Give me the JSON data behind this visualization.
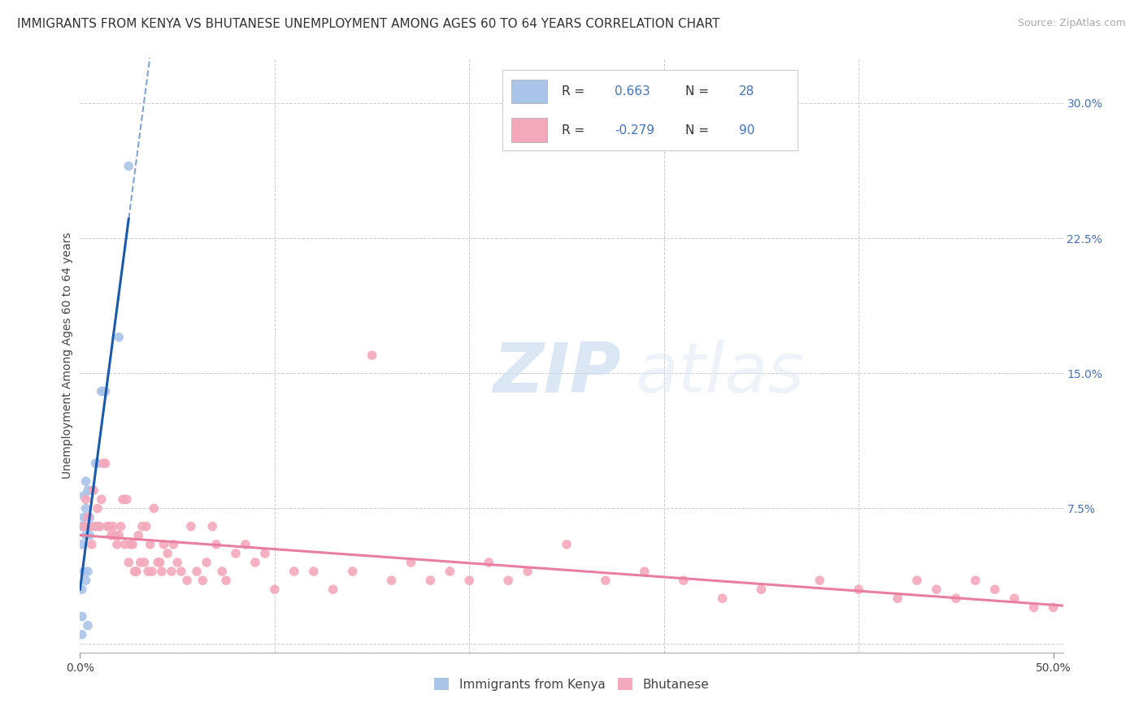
{
  "title": "IMMIGRANTS FROM KENYA VS BHUTANESE UNEMPLOYMENT AMONG AGES 60 TO 64 YEARS CORRELATION CHART",
  "source": "Source: ZipAtlas.com",
  "ylabel": "Unemployment Among Ages 60 to 64 years",
  "xlim": [
    0.0,
    0.505
  ],
  "ylim": [
    -0.005,
    0.325
  ],
  "xtick_positions": [
    0.0,
    0.5
  ],
  "xticklabels": [
    "0.0%",
    "50.0%"
  ],
  "ytick_positions": [
    0.0,
    0.075,
    0.15,
    0.225,
    0.3
  ],
  "yticklabels_right": [
    "",
    "7.5%",
    "15.0%",
    "22.5%",
    "30.0%"
  ],
  "background_color": "#ffffff",
  "grid_color": "#cccccc",
  "kenya_color": "#aac4e8",
  "bhutan_color": "#f4a8bc",
  "kenya_line_color": "#1a5aad",
  "bhutan_line_color": "#e87fa0",
  "kenya_R": 0.663,
  "kenya_N": 28,
  "bhutan_R": -0.279,
  "bhutan_N": 90,
  "legend_label_kenya": "Immigrants from Kenya",
  "legend_label_bhutan": "Bhutanese",
  "kenya_points_x": [
    0.001,
    0.001,
    0.001,
    0.001,
    0.001,
    0.002,
    0.002,
    0.002,
    0.002,
    0.003,
    0.003,
    0.003,
    0.003,
    0.004,
    0.004,
    0.004,
    0.005,
    0.005,
    0.006,
    0.007,
    0.008,
    0.009,
    0.01,
    0.011,
    0.012,
    0.013,
    0.02,
    0.025
  ],
  "kenya_points_y": [
    0.005,
    0.015,
    0.03,
    0.055,
    0.065,
    0.04,
    0.065,
    0.07,
    0.082,
    0.035,
    0.06,
    0.075,
    0.09,
    0.01,
    0.04,
    0.085,
    0.06,
    0.07,
    0.085,
    0.065,
    0.1,
    0.1,
    0.065,
    0.14,
    0.14,
    0.14,
    0.17,
    0.265
  ],
  "bhutan_points_x": [
    0.002,
    0.003,
    0.004,
    0.005,
    0.006,
    0.007,
    0.008,
    0.009,
    0.01,
    0.011,
    0.012,
    0.013,
    0.014,
    0.015,
    0.016,
    0.017,
    0.018,
    0.019,
    0.02,
    0.021,
    0.022,
    0.023,
    0.024,
    0.025,
    0.026,
    0.027,
    0.028,
    0.029,
    0.03,
    0.031,
    0.032,
    0.033,
    0.034,
    0.035,
    0.036,
    0.037,
    0.038,
    0.04,
    0.041,
    0.042,
    0.043,
    0.045,
    0.047,
    0.048,
    0.05,
    0.052,
    0.055,
    0.057,
    0.06,
    0.063,
    0.065,
    0.068,
    0.07,
    0.073,
    0.075,
    0.08,
    0.085,
    0.09,
    0.095,
    0.1,
    0.11,
    0.12,
    0.13,
    0.14,
    0.15,
    0.16,
    0.17,
    0.18,
    0.19,
    0.2,
    0.21,
    0.22,
    0.23,
    0.25,
    0.27,
    0.29,
    0.31,
    0.33,
    0.35,
    0.38,
    0.4,
    0.42,
    0.43,
    0.44,
    0.45,
    0.46,
    0.47,
    0.48,
    0.49,
    0.5
  ],
  "bhutan_points_y": [
    0.065,
    0.08,
    0.07,
    0.065,
    0.055,
    0.085,
    0.065,
    0.075,
    0.065,
    0.08,
    0.1,
    0.1,
    0.065,
    0.065,
    0.06,
    0.065,
    0.06,
    0.055,
    0.06,
    0.065,
    0.08,
    0.055,
    0.08,
    0.045,
    0.055,
    0.055,
    0.04,
    0.04,
    0.06,
    0.045,
    0.065,
    0.045,
    0.065,
    0.04,
    0.055,
    0.04,
    0.075,
    0.045,
    0.045,
    0.04,
    0.055,
    0.05,
    0.04,
    0.055,
    0.045,
    0.04,
    0.035,
    0.065,
    0.04,
    0.035,
    0.045,
    0.065,
    0.055,
    0.04,
    0.035,
    0.05,
    0.055,
    0.045,
    0.05,
    0.03,
    0.04,
    0.04,
    0.03,
    0.04,
    0.16,
    0.035,
    0.045,
    0.035,
    0.04,
    0.035,
    0.045,
    0.035,
    0.04,
    0.055,
    0.035,
    0.04,
    0.035,
    0.025,
    0.03,
    0.035,
    0.03,
    0.025,
    0.035,
    0.03,
    0.025,
    0.035,
    0.03,
    0.025,
    0.02,
    0.02
  ],
  "watermark_zip": "ZIP",
  "watermark_atlas": "atlas",
  "title_fontsize": 11,
  "axis_label_fontsize": 10,
  "tick_fontsize": 10,
  "legend_fontsize": 11,
  "source_fontsize": 9,
  "value_color": "#4472c4"
}
